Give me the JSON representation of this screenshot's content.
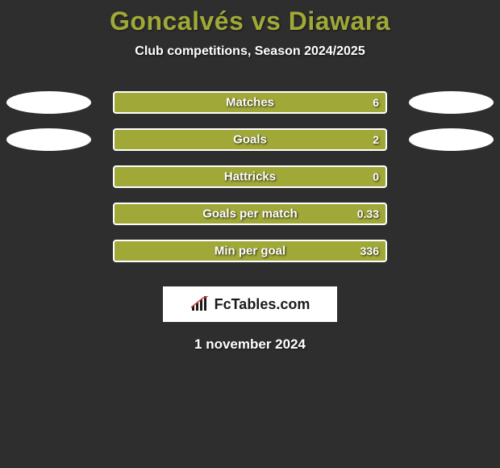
{
  "title": "Goncalvés vs Diawara",
  "subtitle": "Club competitions, Season 2024/2025",
  "footer_date": "1 november 2024",
  "logo_text": "FcTables.com",
  "colors": {
    "background": "#2e2e2e",
    "bar_fill": "#a0a838",
    "bar_border": "#ffffff",
    "title_color": "#a0a838",
    "text_color": "#ffffff",
    "ellipse_color": "#ffffff"
  },
  "stats": [
    {
      "label": "Matches",
      "right_value": "6",
      "show_left_ellipse": true,
      "show_right_ellipse": true
    },
    {
      "label": "Goals",
      "right_value": "2",
      "show_left_ellipse": true,
      "show_right_ellipse": true
    },
    {
      "label": "Hattricks",
      "right_value": "0",
      "show_left_ellipse": false,
      "show_right_ellipse": false
    },
    {
      "label": "Goals per match",
      "right_value": "0.33",
      "show_left_ellipse": false,
      "show_right_ellipse": false
    },
    {
      "label": "Min per goal",
      "right_value": "336",
      "show_left_ellipse": false,
      "show_right_ellipse": false
    }
  ]
}
